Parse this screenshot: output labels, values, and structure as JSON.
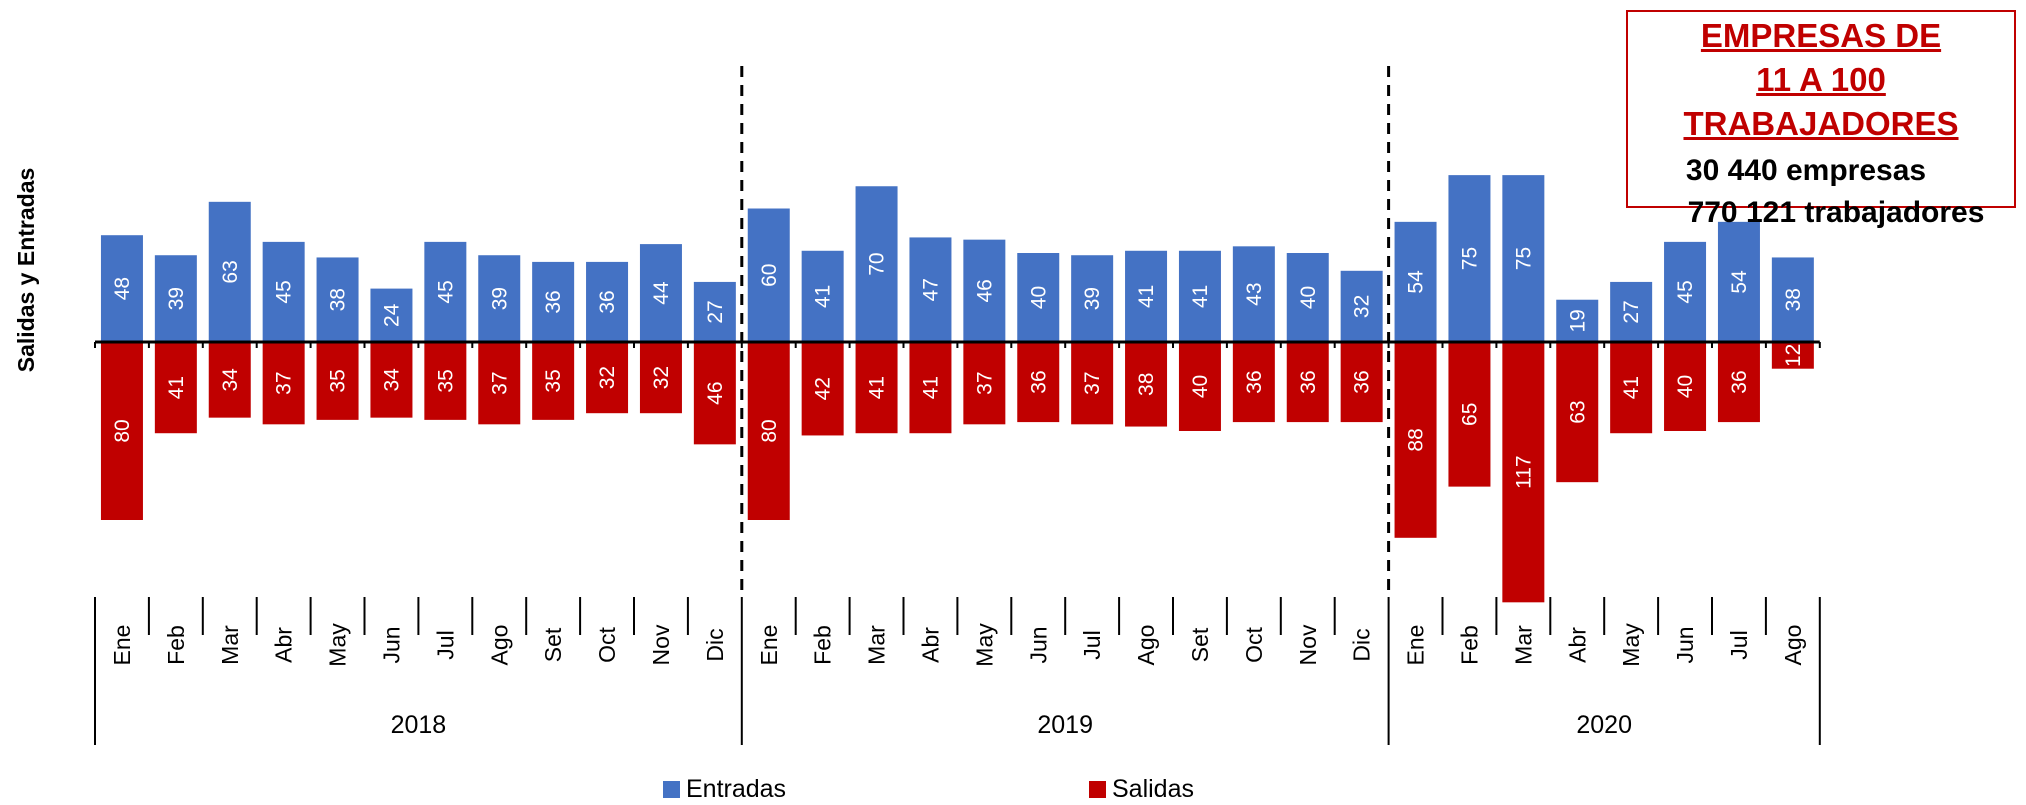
{
  "ylabel": "Salidas  y  Entradas",
  "info_box": {
    "title_line1": "EMPRESAS DE",
    "title_line2": "11 A 100 TRABAJADORES",
    "line1": "30 440 empresas",
    "line2": "770 121 trabajadores"
  },
  "colors": {
    "entradas": "#4472c4",
    "salidas": "#c00000",
    "box_border": "#c00000"
  },
  "chart_data": {
    "type": "bar",
    "title": "",
    "xlabel": "",
    "ylabel": "Salidas  y  Entradas",
    "years": [
      {
        "label": "2018",
        "months": [
          "Ene",
          "Feb",
          "Mar",
          "Abr",
          "May",
          "Jun",
          "Jul",
          "Ago",
          "Set",
          "Oct",
          "Nov",
          "Dic"
        ]
      },
      {
        "label": "2019",
        "months": [
          "Ene",
          "Feb",
          "Mar",
          "Abr",
          "May",
          "Jun",
          "Jul",
          "Ago",
          "Set",
          "Oct",
          "Nov",
          "Dic"
        ]
      },
      {
        "label": "2020",
        "months": [
          "Ene",
          "Feb",
          "Mar",
          "Abr",
          "May",
          "Jun",
          "Jul",
          "Ago"
        ]
      }
    ],
    "categories": [
      "Ene 2018",
      "Feb 2018",
      "Mar 2018",
      "Abr 2018",
      "May 2018",
      "Jun 2018",
      "Jul 2018",
      "Ago 2018",
      "Set 2018",
      "Oct 2018",
      "Nov 2018",
      "Dic 2018",
      "Ene 2019",
      "Feb 2019",
      "Mar 2019",
      "Abr 2019",
      "May 2019",
      "Jun 2019",
      "Jul 2019",
      "Ago 2019",
      "Set 2019",
      "Oct 2019",
      "Nov 2019",
      "Dic 2019",
      "Ene 2020",
      "Feb 2020",
      "Mar 2020",
      "Abr 2020",
      "May 2020",
      "Jun 2020",
      "Jul 2020",
      "Ago 2020"
    ],
    "series": [
      {
        "name": "Entradas",
        "direction": "up",
        "values": [
          48,
          39,
          63,
          45,
          38,
          24,
          45,
          39,
          36,
          36,
          44,
          27,
          60,
          41,
          70,
          47,
          46,
          40,
          39,
          41,
          41,
          43,
          40,
          32,
          54,
          75,
          75,
          19,
          27,
          45,
          54,
          38
        ]
      },
      {
        "name": "Salidas",
        "direction": "down",
        "values": [
          80,
          41,
          34,
          37,
          35,
          34,
          35,
          37,
          35,
          32,
          32,
          46,
          80,
          42,
          41,
          41,
          37,
          36,
          37,
          38,
          40,
          36,
          36,
          36,
          88,
          65,
          117,
          63,
          41,
          40,
          36,
          12
        ]
      }
    ],
    "year_separators": true,
    "legend_position": "bottom-center",
    "grid": false
  }
}
